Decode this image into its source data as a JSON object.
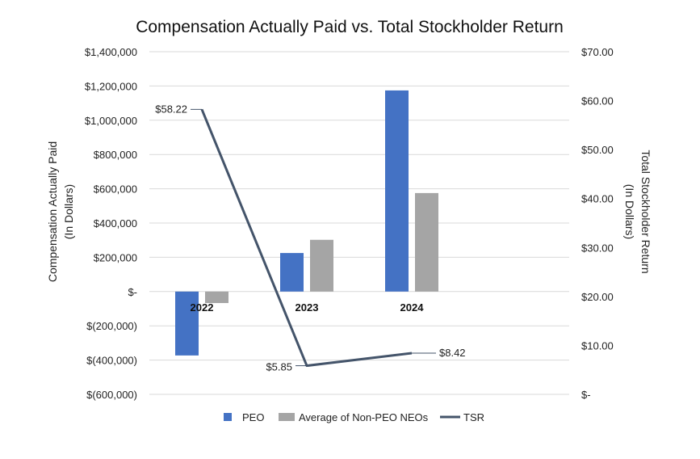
{
  "chart_data": {
    "type": "bar+line",
    "title": "Compensation Actually Paid vs. Total Stockholder Return",
    "categories": [
      "2022",
      "2023",
      "2024"
    ],
    "y_left": {
      "label_lines": [
        "Compensation Actually Paid",
        "(In Dollars)"
      ],
      "range": [
        -600000,
        1400000
      ],
      "ticks": [
        1400000,
        1200000,
        1000000,
        800000,
        600000,
        400000,
        200000,
        0,
        -200000,
        -400000,
        -600000
      ],
      "tick_labels": [
        "$1,400,000",
        "$1,200,000",
        "$1,000,000",
        "$800,000",
        "$600,000",
        "$400,000",
        "$200,000",
        "$-",
        "$(200,000)",
        "$(400,000)",
        "$(600,000)"
      ]
    },
    "y_right": {
      "label_lines": [
        "Total Stockholder Return",
        "(In Dollars)"
      ],
      "range": [
        0,
        70
      ],
      "ticks": [
        70,
        60,
        50,
        40,
        30,
        20,
        10,
        0
      ],
      "tick_labels": [
        "$70.00",
        "$60.00",
        "$50.00",
        "$40.00",
        "$30.00",
        "$20.00",
        "$10.00",
        "$-"
      ]
    },
    "grid": true,
    "legend_position": "bottom",
    "series": [
      {
        "name": "PEO",
        "type": "bar",
        "axis": "left",
        "color": "#4472C4",
        "values": [
          -373000,
          225000,
          1174000
        ]
      },
      {
        "name": "Average of Non-PEO NEOs",
        "type": "bar",
        "axis": "left",
        "color": "#A5A5A5",
        "values": [
          -67000,
          302000,
          575000
        ]
      },
      {
        "name": "TSR",
        "type": "line",
        "axis": "right",
        "color": "#44546A",
        "values": [
          58.22,
          5.85,
          8.42
        ],
        "data_labels": [
          "$58.22",
          "$5.85",
          "$8.42"
        ]
      }
    ]
  }
}
